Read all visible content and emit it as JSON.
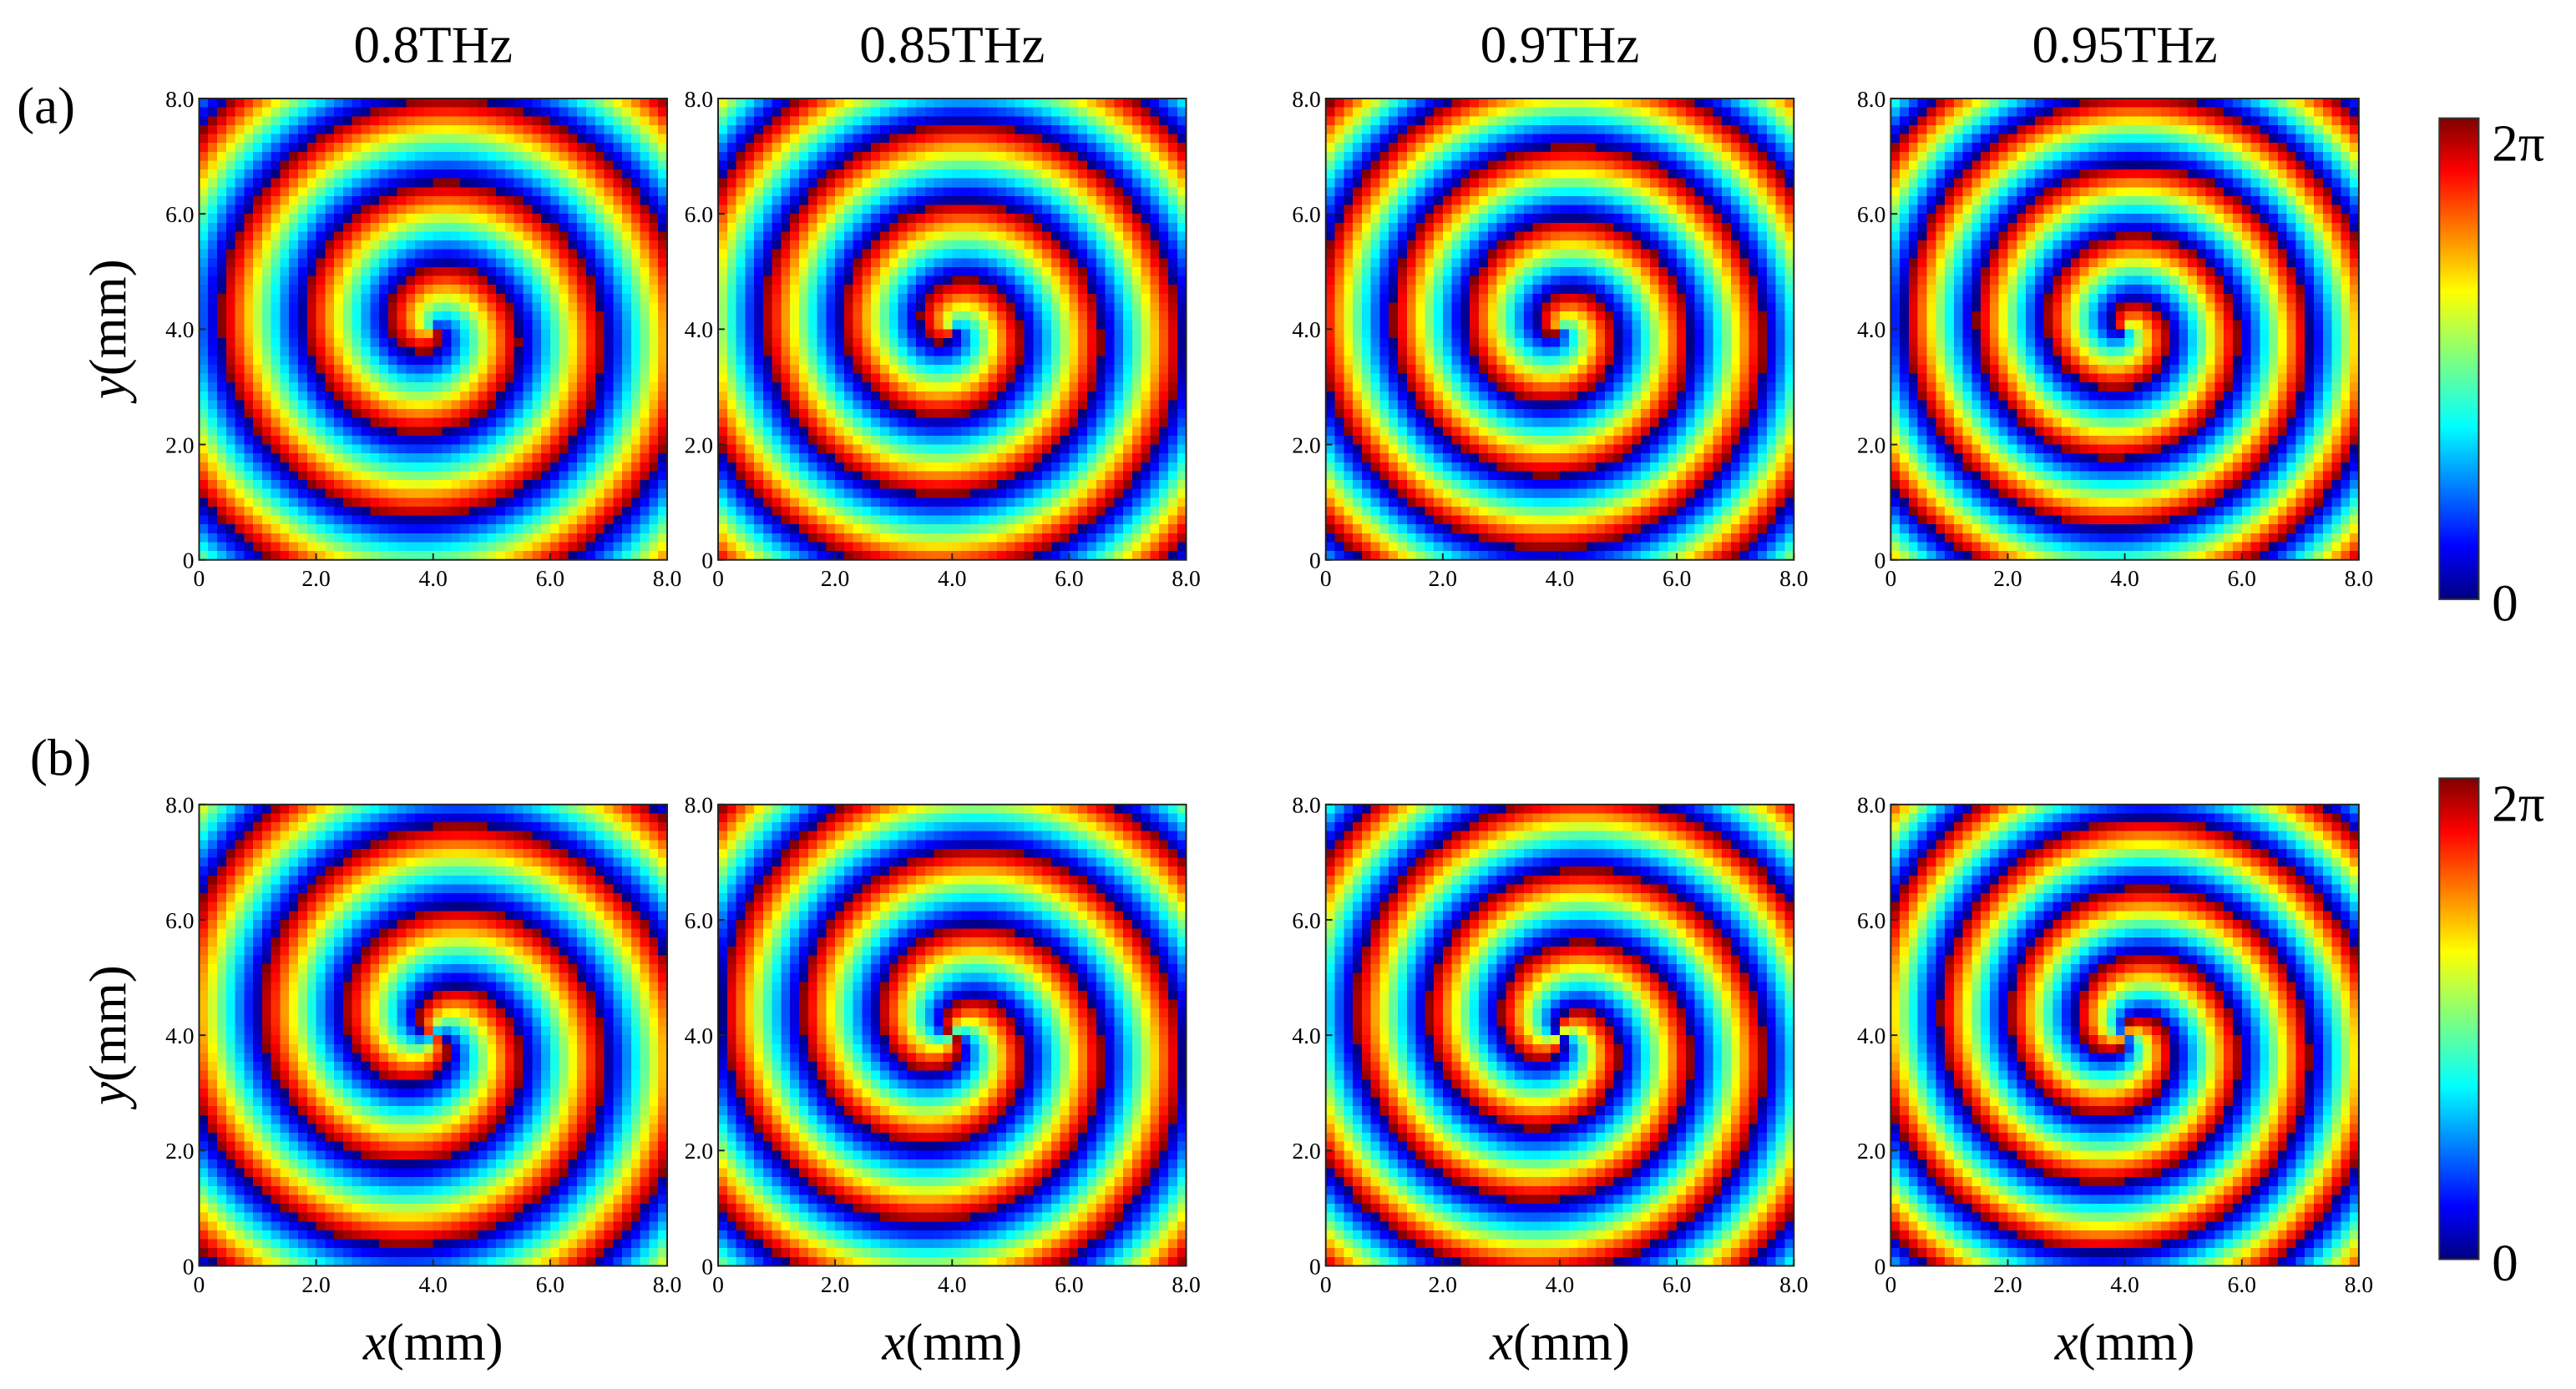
{
  "figure": {
    "panel_labels": [
      "(a)",
      "(b)"
    ],
    "column_titles": [
      "0.8THz",
      "0.85THz",
      "0.9THz",
      "0.95THz"
    ],
    "x_axis": {
      "variable": "x",
      "unit": "(mm)",
      "xlim": [
        0,
        8
      ],
      "xticks": [
        0,
        {
          "value": 2,
          "label": "2.0"
        },
        {
          "value": 4,
          "label": "4.0"
        },
        {
          "value": 6,
          "label": "6.0"
        },
        {
          "value": 8,
          "label": "8.0"
        }
      ]
    },
    "y_axis": {
      "variable": "y",
      "unit": "(mm)",
      "ylim": [
        0,
        8
      ],
      "yticks": [
        0,
        {
          "value": 2,
          "label": "2.0"
        },
        {
          "value": 4,
          "label": "4.0"
        },
        {
          "value": 6,
          "label": "6.0"
        },
        {
          "value": 8,
          "label": "8.0"
        }
      ]
    },
    "colorbar": {
      "max_label": "2π",
      "min_label": "0"
    }
  }
}
